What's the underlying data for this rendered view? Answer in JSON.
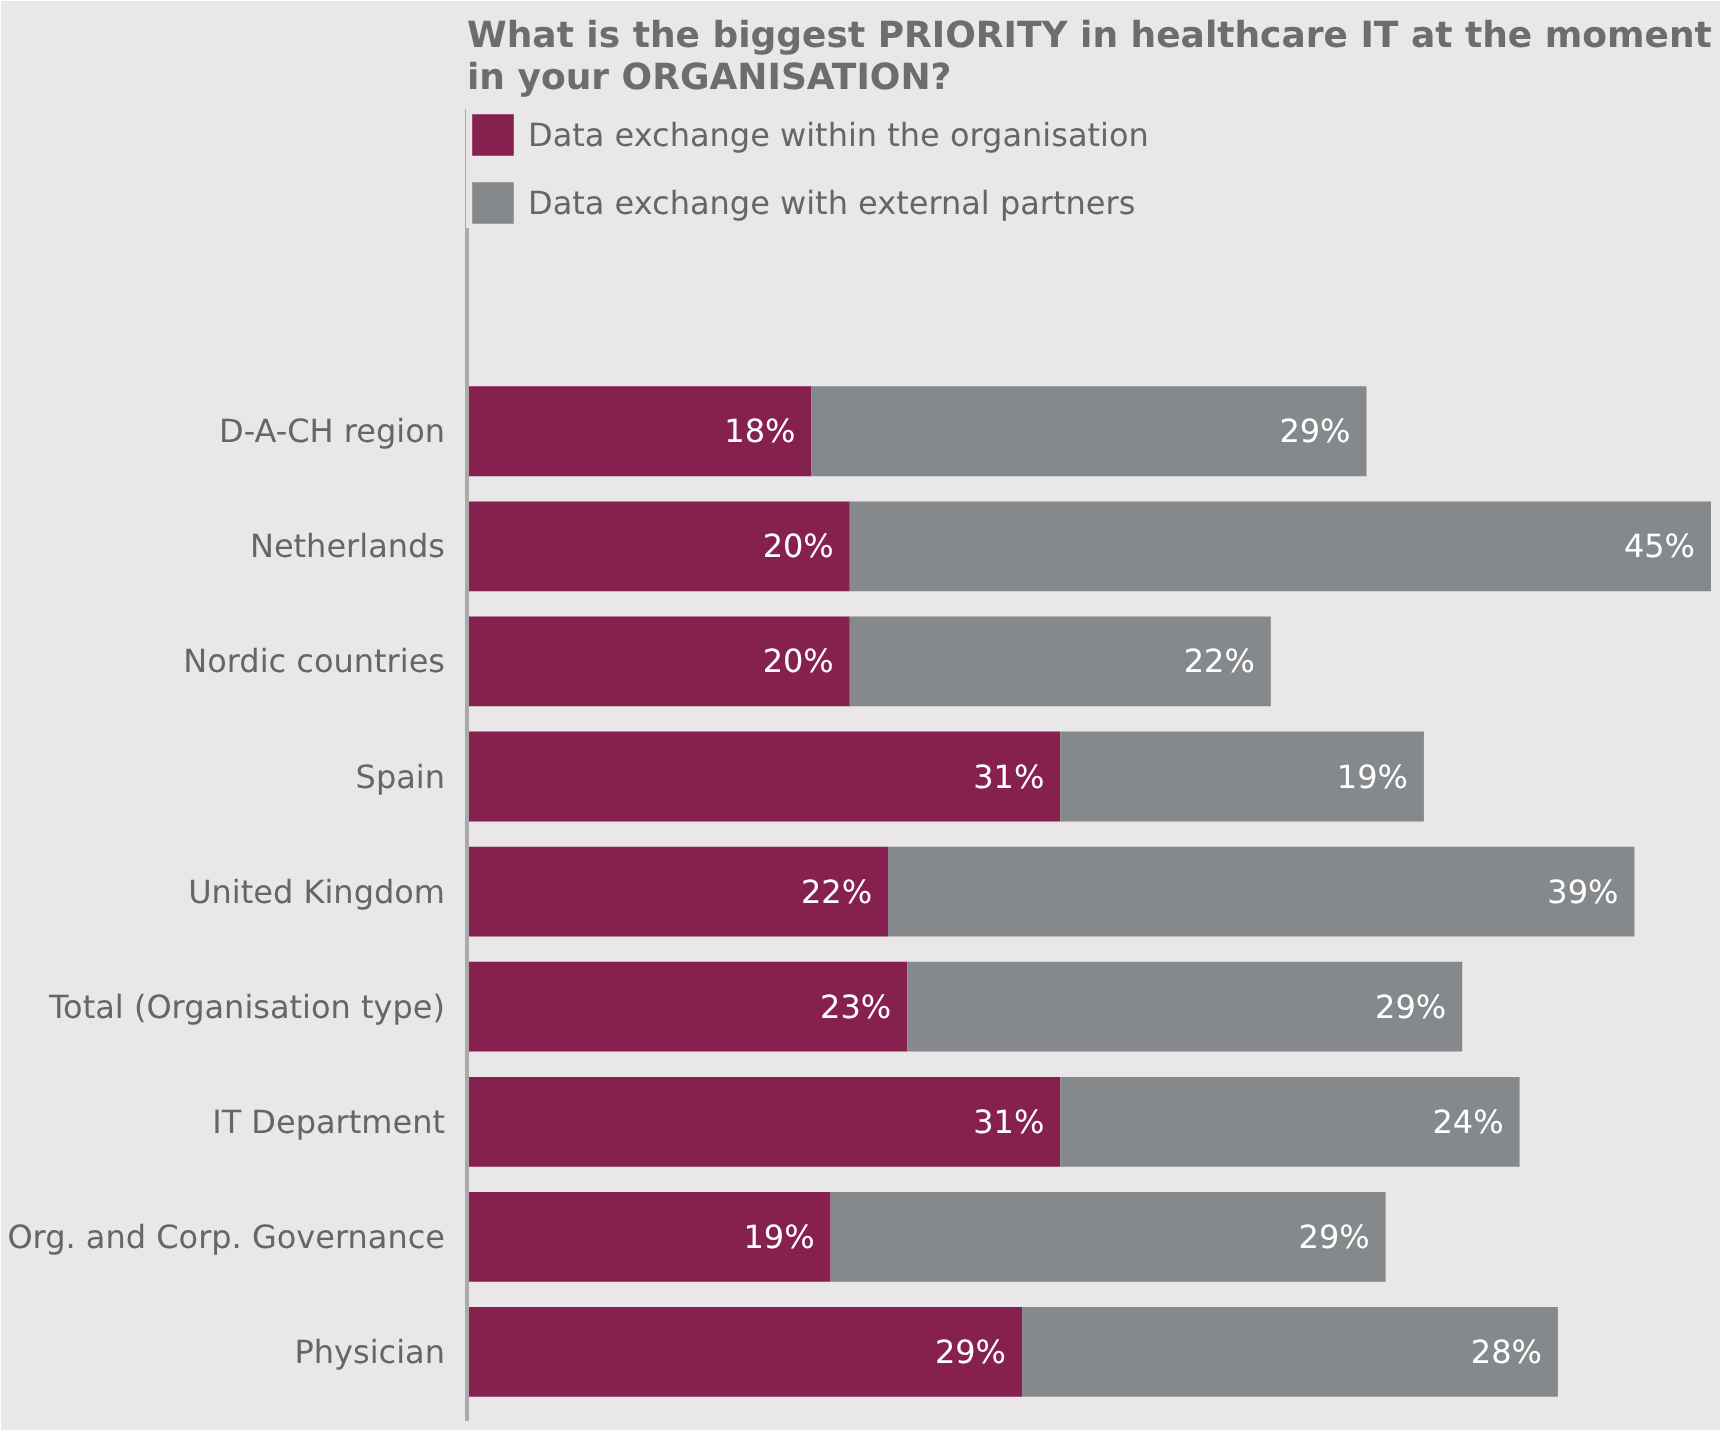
{
  "chart_data": {
    "type": "bar",
    "orientation": "horizontal",
    "stacked": true,
    "title": "What is the biggest PRIORITY in healthcare IT at the moment in your ORGANISATION?",
    "categories": [
      "D-A-CH region",
      "Netherlands",
      "Nordic countries",
      "Spain",
      "United Kingdom",
      "Total (Organisation type)",
      "IT Department",
      "Org. and Corp. Governance",
      "Physician"
    ],
    "series": [
      {
        "name": "Data exchange within the organisation",
        "color": "#85204f",
        "values": [
          18,
          20,
          20,
          31,
          22,
          23,
          31,
          19,
          29
        ],
        "value_labels": [
          "18%",
          "20%",
          "20%",
          "31%",
          "22%",
          "23%",
          "31%",
          "19%",
          "29%"
        ]
      },
      {
        "name": "Data exchange with external partners",
        "color": "#86898b",
        "values": [
          29,
          45,
          22,
          19,
          39,
          29,
          24,
          29,
          28
        ],
        "value_labels": [
          "29%",
          "45%",
          "22%",
          "19%",
          "39%",
          "29%",
          "24%",
          "29%",
          "28%"
        ]
      }
    ],
    "legend": "top left"
  }
}
